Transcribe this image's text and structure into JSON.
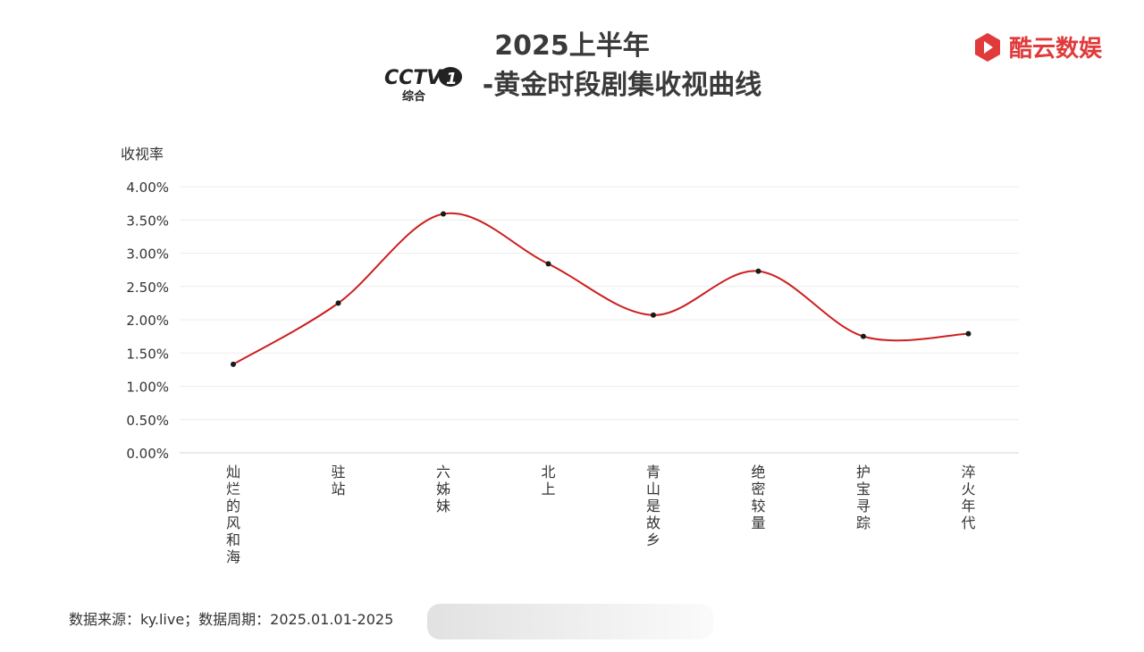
{
  "header": {
    "title_line1": "2025上半年",
    "title_line2": "-黄金时段剧集收视曲线",
    "channel_logo": {
      "text": "CCTV",
      "number": "1",
      "sub": "综合"
    },
    "brand": {
      "name": "酷云数娱",
      "color": "#e03a3a",
      "icon": "brand-logo-icon"
    }
  },
  "footer": {
    "source": "数据来源：ky.live；数据周期：2025.01.01-2025"
  },
  "chart_data": {
    "type": "line",
    "title": "2025上半年 -黄金时段剧集收视曲线",
    "ylabel": "收视率",
    "xlabel": "",
    "categories": [
      "灿烂的风和海",
      "驻站",
      "六姊妹",
      "北上",
      "青山是故乡",
      "绝密较量",
      "护宝寻踪",
      "淬火年代"
    ],
    "series": [
      {
        "values": [
          1.33,
          2.25,
          3.59,
          2.84,
          2.07,
          2.73,
          1.75,
          1.79
        ],
        "color": "#cc1f1f"
      }
    ],
    "ylim": [
      0,
      4
    ],
    "yticks": [
      0,
      0.5,
      1,
      1.5,
      2,
      2.5,
      3,
      3.5,
      4
    ],
    "ytick_labels": [
      "0.00%",
      "0.50%",
      "1.00%",
      "1.50%",
      "2.00%",
      "2.50%",
      "3.00%",
      "3.50%",
      "4.00%"
    ],
    "grid": true,
    "legend": "none",
    "smooth": true
  }
}
